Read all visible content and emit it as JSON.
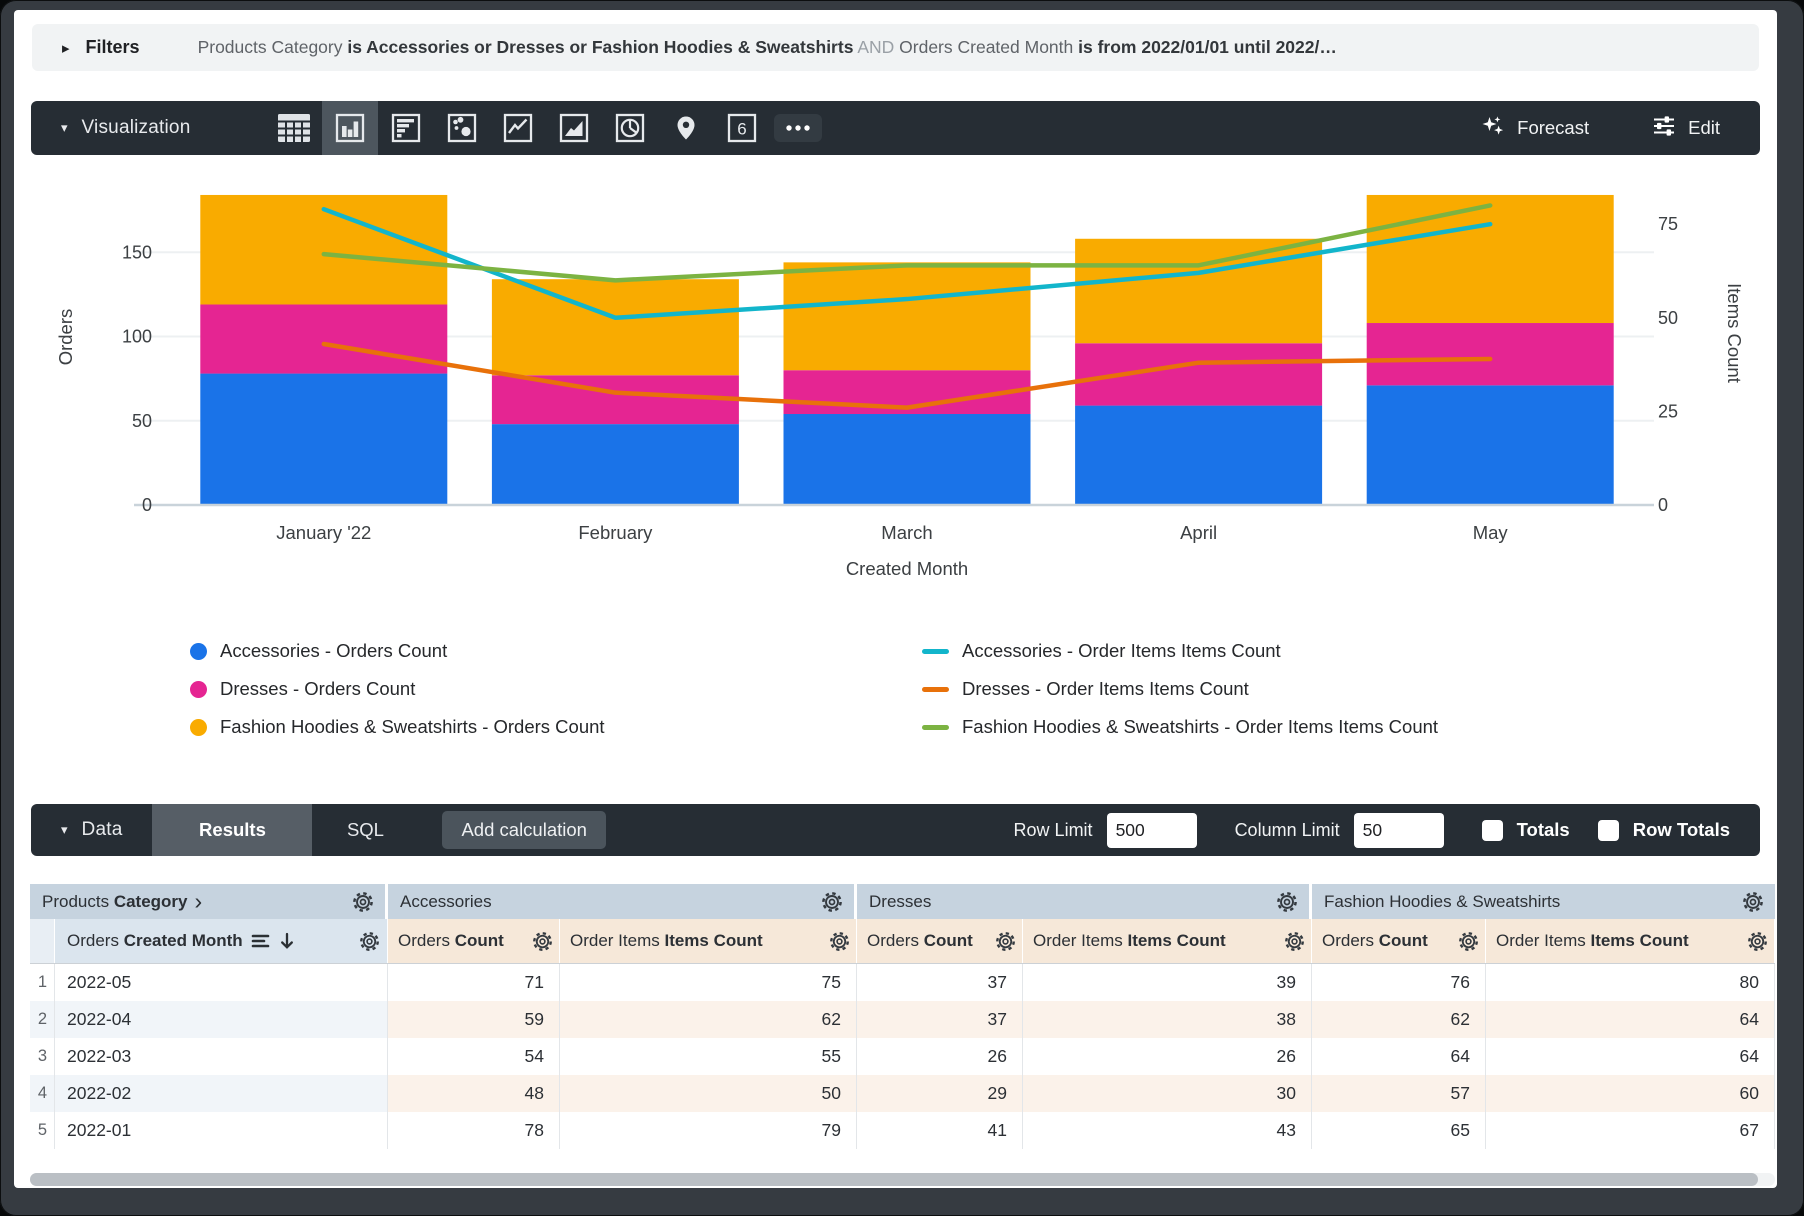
{
  "filters_bar": {
    "label": "Filters",
    "parts": [
      {
        "text": "Products Category ",
        "style": "dim"
      },
      {
        "text": "is Accessories or Dresses or Fashion Hoodies & Sweatshirts",
        "style": "bold"
      },
      {
        "text": " AND ",
        "style": "faint"
      },
      {
        "text": "Orders Created Month ",
        "style": "dim"
      },
      {
        "text": "is from 2022/01/01 until 2022/…",
        "style": "bold"
      }
    ]
  },
  "viz_bar": {
    "label": "Visualization",
    "icons": [
      {
        "name": "table-chart-icon",
        "selected": false
      },
      {
        "name": "column-chart-icon",
        "selected": true
      },
      {
        "name": "bar-chart-icon",
        "selected": false
      },
      {
        "name": "scatter-chart-icon",
        "selected": false
      },
      {
        "name": "line-chart-icon",
        "selected": false
      },
      {
        "name": "area-chart-icon",
        "selected": false
      },
      {
        "name": "pie-chart-icon",
        "selected": false
      },
      {
        "name": "map-chart-icon",
        "selected": false
      },
      {
        "name": "single-value-icon",
        "selected": false,
        "glyph": "6"
      },
      {
        "name": "more-viz-icon",
        "selected": false
      }
    ],
    "forecast_label": "Forecast",
    "edit_label": "Edit"
  },
  "chart_data": {
    "type": "combo: stacked bar + line",
    "categories": [
      "January '22",
      "February",
      "March",
      "April",
      "May"
    ],
    "bar_series": [
      {
        "name": "Accessories - Orders Count",
        "color": "#1a73e8",
        "values": [
          78,
          48,
          54,
          59,
          71
        ]
      },
      {
        "name": "Dresses - Orders Count",
        "color": "#e52592",
        "values": [
          41,
          29,
          26,
          37,
          37
        ]
      },
      {
        "name": "Fashion Hoodies & Sweatshirts - Orders Count",
        "color": "#f9ab00",
        "values": [
          65,
          57,
          64,
          62,
          76
        ]
      }
    ],
    "line_series": [
      {
        "name": "Accessories - Order Items Items Count",
        "color": "#12b5cb",
        "values": [
          79,
          50,
          55,
          62,
          75
        ]
      },
      {
        "name": "Dresses - Order Items Items Count",
        "color": "#e8710a",
        "values": [
          43,
          30,
          26,
          38,
          39
        ]
      },
      {
        "name": "Fashion Hoodies & Sweatshirts - Order Items Items Count",
        "color": "#7cb342",
        "values": [
          67,
          60,
          64,
          64,
          80
        ]
      }
    ],
    "left_axis": {
      "label": "Orders",
      "ticks": [
        0,
        50,
        100,
        150
      ],
      "max": 200
    },
    "right_axis": {
      "label": "Items Count",
      "ticks": [
        0,
        25,
        50,
        75
      ],
      "max": 90
    },
    "xlabel": "Created Month",
    "grid": "horizontal lines at left-axis ticks",
    "legend_position": "bottom, two columns"
  },
  "data_bar": {
    "label": "Data",
    "results_tab": "Results",
    "sql_tab": "SQL",
    "add_calculation": "Add calculation",
    "row_limit_label": "Row Limit",
    "row_limit_value": "500",
    "column_limit_label": "Column Limit",
    "column_limit_value": "50",
    "totals_label": "Totals",
    "row_totals_label": "Row Totals"
  },
  "table": {
    "groups": [
      {
        "regular": "Products ",
        "bold": "Category",
        "chevron": true
      },
      {
        "label": "Accessories"
      },
      {
        "label": "Dresses"
      },
      {
        "label": "Fashion Hoodies & Sweatshirts"
      }
    ],
    "dimension_header": {
      "regular": "Orders ",
      "bold": "Created Month"
    },
    "measure_headers": [
      {
        "regular": "Orders ",
        "bold": "Count"
      },
      {
        "regular": "Order Items ",
        "bold": "Items Count"
      },
      {
        "regular": "Orders ",
        "bold": "Count"
      },
      {
        "regular": "Order Items ",
        "bold": "Items Count"
      },
      {
        "regular": "Orders ",
        "bold": "Count"
      },
      {
        "regular": "Order Items ",
        "bold": "Items Count"
      }
    ],
    "rows": [
      {
        "num": "1",
        "dimension": "2022-05",
        "values": [
          71,
          75,
          37,
          39,
          76,
          80
        ]
      },
      {
        "num": "2",
        "dimension": "2022-04",
        "values": [
          59,
          62,
          37,
          38,
          62,
          64
        ]
      },
      {
        "num": "3",
        "dimension": "2022-03",
        "values": [
          54,
          55,
          26,
          26,
          64,
          64
        ]
      },
      {
        "num": "4",
        "dimension": "2022-02",
        "values": [
          48,
          50,
          29,
          30,
          57,
          60
        ]
      },
      {
        "num": "5",
        "dimension": "2022-01",
        "values": [
          78,
          79,
          41,
          43,
          65,
          67
        ]
      }
    ]
  }
}
